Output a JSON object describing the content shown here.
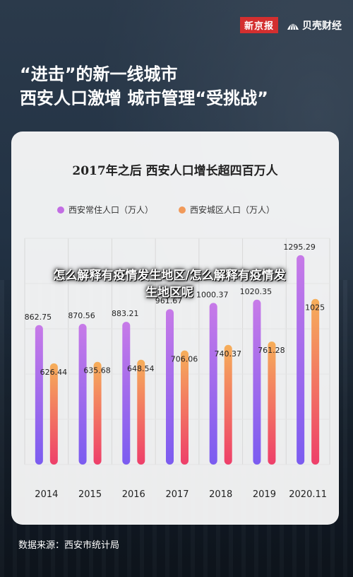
{
  "brand": {
    "paper": "新京报",
    "finance": "贝壳财经"
  },
  "headline": {
    "line1": "“进击”的新一线城市",
    "line2": "西安人口激增 城市管理“受挑战”"
  },
  "overlay_text": "怎么解释有疫情发生地区/怎么解释有疫情发生地区呢",
  "source": "数据来源：西安市统计局",
  "colors": {
    "permanent": "#c26de3",
    "urban": "#f19a5a"
  },
  "chart_data": {
    "type": "bar",
    "title": "2017年之后 西安人口增长超四百万人",
    "legend_position": "top",
    "categories": [
      "2014",
      "2015",
      "2016",
      "2017",
      "2018",
      "2019",
      "2020.11"
    ],
    "series": [
      {
        "name": "西安常住人口（万人）",
        "values": [
          862.75,
          870.56,
          883.21,
          961.67,
          1000.37,
          1020.35,
          1295.29
        ]
      },
      {
        "name": "西安城区人口（万人）",
        "values": [
          626.44,
          635.68,
          648.54,
          706.06,
          740.37,
          761.28,
          1025
        ]
      }
    ],
    "ylim": [
      0,
      1400
    ],
    "grid": true
  }
}
